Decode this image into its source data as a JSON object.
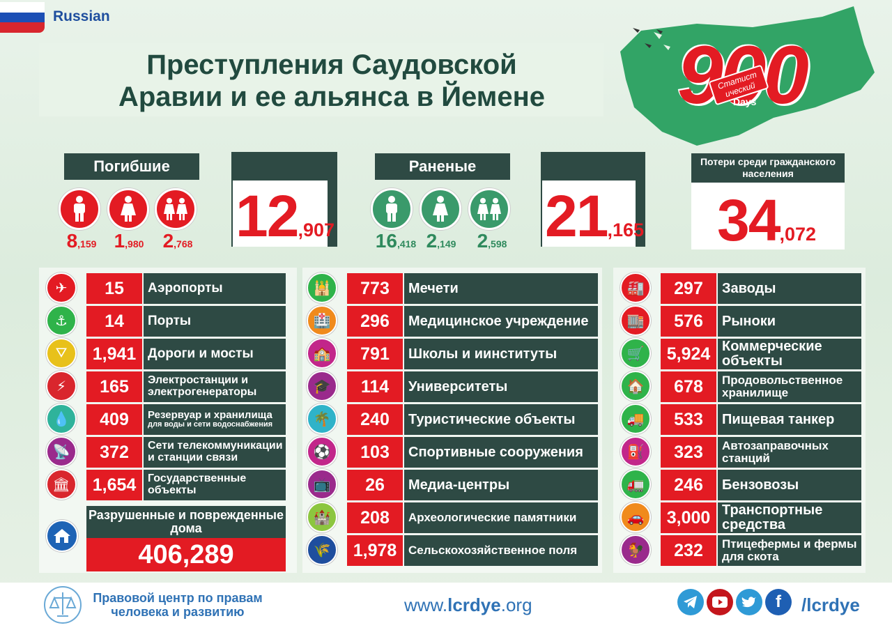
{
  "header": {
    "language": "Russian",
    "title_line1": "Преступления Саудовской",
    "title_line2": "Аравии и ее альянса в Йемене",
    "days_number": "900",
    "days_tag": "Статист ический",
    "days_word": "Days"
  },
  "killed": {
    "label": "Погибшие",
    "men": {
      "big": "8",
      "small": ",159"
    },
    "women": {
      "big": "1",
      "small": ",980"
    },
    "children": {
      "big": "2",
      "small": ",768"
    },
    "total": {
      "big": "12",
      "small": ",907"
    }
  },
  "wounded": {
    "label": "Раненые",
    "men": {
      "big": "16",
      "small": ",418"
    },
    "women": {
      "big": "2",
      "small": ",149"
    },
    "children": {
      "big": "2",
      "small": ",598"
    },
    "total": {
      "big": "21",
      "small": ",165"
    }
  },
  "civilian_losses": {
    "label": "Потери среди гражданского населения",
    "total": {
      "big": "34",
      "small": ",072"
    }
  },
  "col1": [
    {
      "value": "15",
      "label": "Аэропорты",
      "icon": "airplane-icon",
      "color": "#e31b23"
    },
    {
      "value": "14",
      "label": "Порты",
      "icon": "anchor-icon",
      "color": "#2fb34a"
    },
    {
      "value": "1,941",
      "label": "Дороги и мосты",
      "icon": "road-icon",
      "color": "#e8c11a"
    },
    {
      "value": "165",
      "label": "Электростанции и электрогенераторы",
      "icon": "power-tower-icon",
      "color": "#d9262d"
    },
    {
      "value": "409",
      "label": "Резервуар и хранилища",
      "sub": "для воды и сети водоснабжения",
      "icon": "water-drop-icon",
      "color": "#2fb39b"
    },
    {
      "value": "372",
      "label": "Сети телекоммуникации и станции связи",
      "icon": "satellite-dish-icon",
      "color": "#9a2a8c"
    },
    {
      "value": "1,654",
      "label": "Государственные объекты",
      "icon": "government-building-icon",
      "color": "#d9262d"
    }
  ],
  "houses": {
    "label": "Разрушенные и поврежденные дома",
    "value": "406,289",
    "icon": "house-icon",
    "color": "#1e63b5"
  },
  "col2": [
    {
      "value": "773",
      "label": "Мечети",
      "icon": "mosque-icon",
      "color": "#2fb34a"
    },
    {
      "value": "296",
      "label": "Медицинское учреждение",
      "icon": "hospital-icon",
      "color": "#f08a1c"
    },
    {
      "value": "791",
      "label": "Школы и иинституты",
      "icon": "school-icon",
      "color": "#c2268a"
    },
    {
      "value": "114",
      "label": "Университеты",
      "icon": "graduation-cap-icon",
      "color": "#9a2a8c"
    },
    {
      "value": "240",
      "label": "Туристические объекты",
      "icon": "palm-tree-icon",
      "color": "#2fb3c9"
    },
    {
      "value": "103",
      "label": "Спортивные сооружения",
      "icon": "sports-field-icon",
      "color": "#c2268a"
    },
    {
      "value": "26",
      "label": "Медиа-центры",
      "icon": "tv-icon",
      "color": "#9a2a8c"
    },
    {
      "value": "208",
      "label": "Археологические памятники",
      "icon": "tower-icon",
      "color": "#8cc63f"
    },
    {
      "value": "1,978",
      "label": "Сельскохозяйственное поля",
      "icon": "farm-field-icon",
      "color": "#1e4e9e"
    }
  ],
  "col3": [
    {
      "value": "297",
      "label": "Заводы",
      "icon": "factory-icon",
      "color": "#e31b23"
    },
    {
      "value": "576",
      "label": "Рыноки",
      "icon": "market-icon",
      "color": "#e31b23"
    },
    {
      "value": "5,924",
      "label": "Коммерческие объекты",
      "icon": "shop-icon",
      "color": "#2fb34a"
    },
    {
      "value": "678",
      "label": "Продовольственное хранилище",
      "icon": "food-storage-icon",
      "color": "#2fb34a"
    },
    {
      "value": "533",
      "label": "Пищевая танкер",
      "icon": "food-truck-icon",
      "color": "#2fb34a"
    },
    {
      "value": "323",
      "label": "Автозаправочных станций",
      "icon": "fuel-pump-icon",
      "color": "#c2268a"
    },
    {
      "value": "246",
      "label": "Бензовозы",
      "icon": "tanker-truck-icon",
      "color": "#2fb34a"
    },
    {
      "value": "3,000",
      "label": "Транспортные средства",
      "icon": "car-icon",
      "color": "#f08a1c"
    },
    {
      "value": "232",
      "label": "Птицефермы и фермы для скота",
      "icon": "rooster-icon",
      "color": "#9a2a8c"
    }
  ],
  "footer": {
    "org_line1": "Правовой центр по правам",
    "org_line2": "человека и развитию",
    "url_prefix": "www.",
    "url_brand": "lcrdye",
    "url_suffix": ".org",
    "handle": "/lcrdye",
    "social": [
      {
        "icon": "telegram-icon",
        "color": "#2f9ad6"
      },
      {
        "icon": "youtube-icon",
        "color": "#c4161c"
      },
      {
        "icon": "twitter-icon",
        "color": "#2f9ad6"
      },
      {
        "icon": "facebook-icon",
        "color": "#1e5fb3"
      }
    ]
  }
}
